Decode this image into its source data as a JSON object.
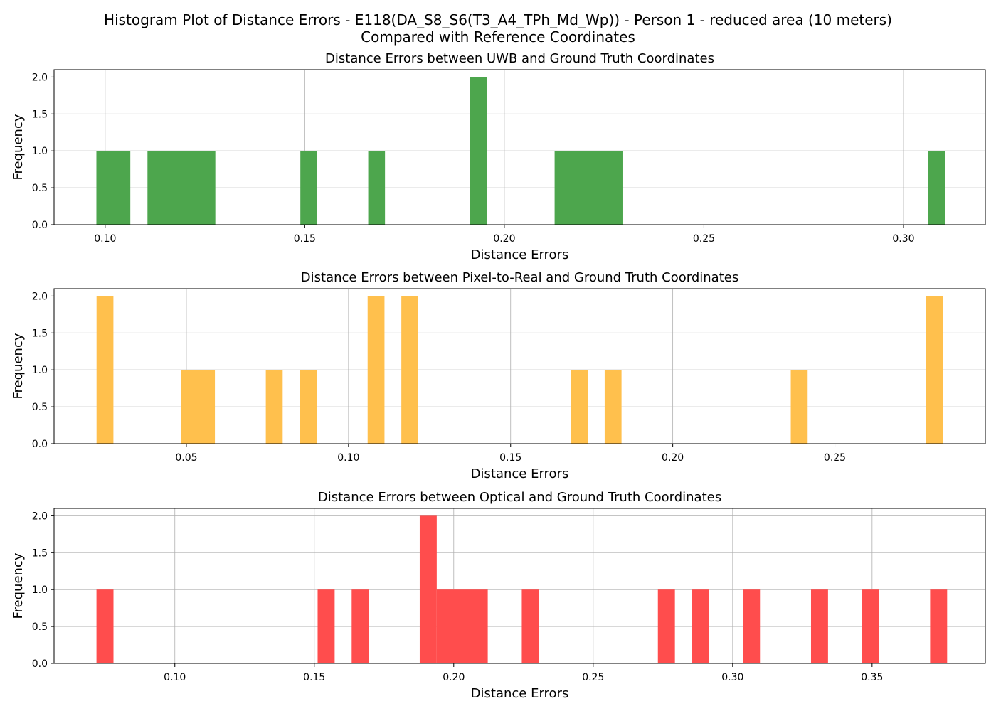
{
  "figure": {
    "suptitle_line1": "Histogram Plot of Distance Errors - E118(DA_S8_S6(T3_A4_TPh_Md_Wp)) - Person 1 - reduced area (10 meters)",
    "suptitle_line2": "Compared with Reference Coordinates"
  },
  "chart_data": [
    {
      "type": "bar",
      "title": "Distance Errors between UWB and Ground Truth Coordinates",
      "xlabel": "Distance Errors",
      "ylabel": "Frequency",
      "color": "#4da64d",
      "xlim": [
        0.0872,
        0.3205
      ],
      "ylim": [
        0,
        2.1
      ],
      "xticks": [
        0.1,
        0.15,
        0.2,
        0.25,
        0.3
      ],
      "xtick_labels": [
        "0.10",
        "0.15",
        "0.20",
        "0.25",
        "0.30"
      ],
      "yticks": [
        0.0,
        0.5,
        1.0,
        1.5,
        2.0
      ],
      "ytick_labels": [
        "0.0",
        "0.5",
        "1.0",
        "1.5",
        "2.0"
      ],
      "grid": true,
      "bins": [
        {
          "x0": 0.0978,
          "x1": 0.1063,
          "count": 1
        },
        {
          "x0": 0.1106,
          "x1": 0.1276,
          "count": 1
        },
        {
          "x0": 0.1489,
          "x1": 0.1531,
          "count": 1
        },
        {
          "x0": 0.1659,
          "x1": 0.1701,
          "count": 1
        },
        {
          "x0": 0.1914,
          "x1": 0.1956,
          "count": 2
        },
        {
          "x0": 0.2126,
          "x1": 0.2296,
          "count": 1
        },
        {
          "x0": 0.3062,
          "x1": 0.3104,
          "count": 1
        }
      ]
    },
    {
      "type": "bar",
      "title": "Distance Errors between Pixel-to-Real and Ground Truth Coordinates",
      "xlabel": "Distance Errors",
      "ylabel": "Frequency",
      "color": "#ffc04d",
      "xlim": [
        0.0092,
        0.2964
      ],
      "ylim": [
        0,
        2.1
      ],
      "xticks": [
        0.05,
        0.1,
        0.15,
        0.2,
        0.25
      ],
      "xtick_labels": [
        "0.05",
        "0.10",
        "0.15",
        "0.20",
        "0.25"
      ],
      "yticks": [
        0.0,
        0.5,
        1.0,
        1.5,
        2.0
      ],
      "ytick_labels": [
        "0.0",
        "0.5",
        "1.0",
        "1.5",
        "2.0"
      ],
      "grid": true,
      "bins": [
        {
          "x0": 0.0223,
          "x1": 0.0275,
          "count": 2
        },
        {
          "x0": 0.0484,
          "x1": 0.0588,
          "count": 1
        },
        {
          "x0": 0.0745,
          "x1": 0.0797,
          "count": 1
        },
        {
          "x0": 0.085,
          "x1": 0.0902,
          "count": 1
        },
        {
          "x0": 0.1059,
          "x1": 0.1111,
          "count": 2
        },
        {
          "x0": 0.1163,
          "x1": 0.1215,
          "count": 2
        },
        {
          "x0": 0.1685,
          "x1": 0.1738,
          "count": 1
        },
        {
          "x0": 0.179,
          "x1": 0.1842,
          "count": 1
        },
        {
          "x0": 0.2364,
          "x1": 0.2416,
          "count": 1
        },
        {
          "x0": 0.2781,
          "x1": 0.2834,
          "count": 2
        }
      ]
    },
    {
      "type": "bar",
      "title": "Distance Errors between Optical and Ground Truth Coordinates",
      "xlabel": "Distance Errors",
      "ylabel": "Frequency",
      "color": "#ff4d4d",
      "xlim": [
        0.0567,
        0.3906
      ],
      "ylim": [
        0,
        2.1
      ],
      "xticks": [
        0.1,
        0.15,
        0.2,
        0.25,
        0.3,
        0.35
      ],
      "xtick_labels": [
        "0.10",
        "0.15",
        "0.20",
        "0.25",
        "0.30",
        "0.35"
      ],
      "yticks": [
        0.0,
        0.5,
        1.0,
        1.5,
        2.0
      ],
      "ytick_labels": [
        "0.0",
        "0.5",
        "1.0",
        "1.5",
        "2.0"
      ],
      "grid": true,
      "bins": [
        {
          "x0": 0.0719,
          "x1": 0.078,
          "count": 1
        },
        {
          "x0": 0.1512,
          "x1": 0.1573,
          "count": 1
        },
        {
          "x0": 0.1634,
          "x1": 0.1695,
          "count": 1
        },
        {
          "x0": 0.1878,
          "x1": 0.1939,
          "count": 2
        },
        {
          "x0": 0.1939,
          "x1": 0.2122,
          "count": 1
        },
        {
          "x0": 0.2244,
          "x1": 0.2305,
          "count": 1
        },
        {
          "x0": 0.2732,
          "x1": 0.2793,
          "count": 1
        },
        {
          "x0": 0.2854,
          "x1": 0.2915,
          "count": 1
        },
        {
          "x0": 0.3037,
          "x1": 0.3098,
          "count": 1
        },
        {
          "x0": 0.3281,
          "x1": 0.3342,
          "count": 1
        },
        {
          "x0": 0.3464,
          "x1": 0.3525,
          "count": 1
        },
        {
          "x0": 0.3708,
          "x1": 0.3769,
          "count": 1
        }
      ]
    }
  ]
}
